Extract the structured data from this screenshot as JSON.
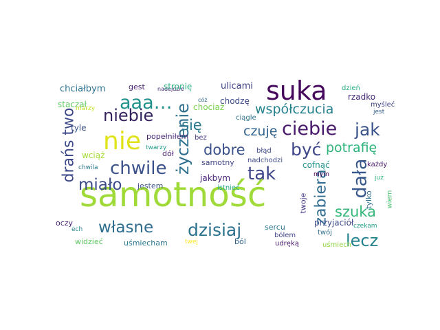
{
  "cloud": {
    "words": [
      {
        "text": "samotność",
        "color": "#a0da39"
      },
      {
        "text": "suka",
        "color": "#46085c"
      },
      {
        "text": "nie",
        "color": "#e0e318"
      },
      {
        "text": "aaa…",
        "color": "#21918c"
      },
      {
        "text": "niebie",
        "color": "#35235f"
      },
      {
        "text": "życzenie",
        "color": "#2e6f8e"
      },
      {
        "text": "ciebie",
        "color": "#48186a"
      },
      {
        "text": "współczucia",
        "color": "#26818e"
      },
      {
        "text": "chwile",
        "color": "#3b518b"
      },
      {
        "text": "tak",
        "color": "#3f4788"
      },
      {
        "text": "dała",
        "color": "#38588c"
      },
      {
        "text": "jak",
        "color": "#3a538b"
      },
      {
        "text": "być",
        "color": "#3f4889"
      },
      {
        "text": "własne",
        "color": "#2e6d8e"
      },
      {
        "text": "dzisiaj",
        "color": "#2c728e"
      },
      {
        "text": "lecz",
        "color": "#25838e"
      },
      {
        "text": "miało",
        "color": "#3e4c8a"
      },
      {
        "text": "drańs two",
        "color": "#3e4989"
      },
      {
        "text": "zabiera",
        "color": "#2f6b8e"
      },
      {
        "text": "się",
        "color": "#2a788e"
      },
      {
        "text": "czuję",
        "color": "#33638d"
      },
      {
        "text": "dobre",
        "color": "#3b528b"
      },
      {
        "text": "potrafię",
        "color": "#2fb47c"
      },
      {
        "text": "szuka",
        "color": "#35b779"
      },
      {
        "text": "chciałbym",
        "color": "#2c718e"
      },
      {
        "text": "gest",
        "color": "#482173"
      },
      {
        "text": "nadejdzie",
        "color": "#472d7b"
      },
      {
        "text": "stronię",
        "color": "#29af7f"
      },
      {
        "text": "ulicami",
        "color": "#414487"
      },
      {
        "text": "dzień",
        "color": "#28ae80"
      },
      {
        "text": "rzadko",
        "color": "#472c7a"
      },
      {
        "text": "myśleć",
        "color": "#404688"
      },
      {
        "text": "jest",
        "color": "#355f8d"
      },
      {
        "text": "staczał",
        "color": "#5ec962"
      },
      {
        "text": "marzy",
        "color": "#c2df23"
      },
      {
        "text": "chociaż",
        "color": "#7ad151"
      },
      {
        "text": "cóż",
        "color": "#31688e"
      },
      {
        "text": "chodzę",
        "color": "#3e4a89"
      },
      {
        "text": "ciągle",
        "color": "#2c728e"
      },
      {
        "text": "tyle",
        "color": "#3b528b"
      },
      {
        "text": "popełniłem",
        "color": "#482878"
      },
      {
        "text": "bez",
        "color": "#453781"
      },
      {
        "text": "wciąż",
        "color": "#a5db36"
      },
      {
        "text": "dół",
        "color": "#481f70"
      },
      {
        "text": "twarzy",
        "color": "#1f9a8a"
      },
      {
        "text": "błąd",
        "color": "#3e4a89"
      },
      {
        "text": "samotny",
        "color": "#414487"
      },
      {
        "text": "nadchodzi",
        "color": "#3e4a89"
      },
      {
        "text": "cofnąć",
        "color": "#20928c"
      },
      {
        "text": "każdy",
        "color": "#481769"
      },
      {
        "text": "chwila",
        "color": "#2a788e"
      },
      {
        "text": "jakbym",
        "color": "#482475"
      },
      {
        "text": "istnieć",
        "color": "#22a785"
      },
      {
        "text": "mym",
        "color": "#440154"
      },
      {
        "text": "już",
        "color": "#2fb47c"
      },
      {
        "text": "jestem",
        "color": "#3b528b"
      },
      {
        "text": "twoje",
        "color": "#453882"
      },
      {
        "text": "tylko",
        "color": "#2e6e8e"
      },
      {
        "text": "wiem",
        "color": "#4ac16d"
      },
      {
        "text": "oczy",
        "color": "#482576"
      },
      {
        "text": "sercu",
        "color": "#2a788e"
      },
      {
        "text": "przyjaciół",
        "color": "#3e4a89"
      },
      {
        "text": "ech",
        "color": "#25838e"
      },
      {
        "text": "bólem",
        "color": "#414487"
      },
      {
        "text": "twój",
        "color": "#2d708e"
      },
      {
        "text": "widzieć",
        "color": "#5ec962"
      },
      {
        "text": "uśmiecham",
        "color": "#2a788e"
      },
      {
        "text": "twej",
        "color": "#fde725"
      },
      {
        "text": "ból",
        "color": "#33638d"
      },
      {
        "text": "udręką",
        "color": "#481a6c"
      },
      {
        "text": "uśmiech",
        "color": "#90d743"
      },
      {
        "text": "czekam",
        "color": "#1fa088"
      }
    ]
  }
}
